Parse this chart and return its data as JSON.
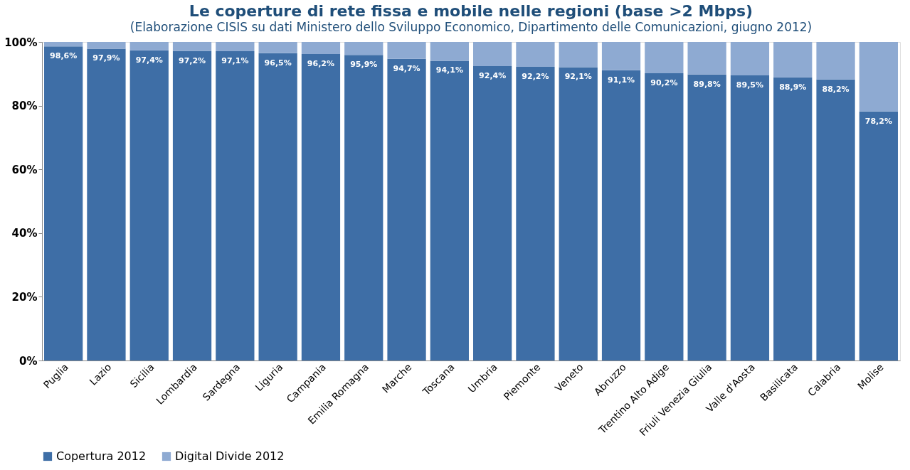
{
  "chart_data": {
    "type": "bar",
    "stacked": true,
    "title": "Le coperture di rete fissa e mobile nelle regioni (base >2 Mbps)",
    "subtitle": "(Elaborazione CISIS su dati Ministero dello Sviluppo Economico, Dipartimento delle Comunicazioni, giugno 2012)",
    "categories": [
      "Puglia",
      "Lazio",
      "Sicilia",
      "Lombardia",
      "Sardegna",
      "Liguria",
      "Campania",
      "Emilia Romagna",
      "Marche",
      "Toscana",
      "Umbria",
      "Piemonte",
      "Veneto",
      "Abruzzo",
      "Trentino Alto Adige",
      "Friuli Venezia Giulia",
      "Valle d'Aosta",
      "Basilicata",
      "Calabria",
      "Molise"
    ],
    "series": [
      {
        "name": "Copertura 2012",
        "color": "#3e6ea6",
        "values": [
          98.6,
          97.9,
          97.4,
          97.2,
          97.1,
          96.5,
          96.2,
          95.9,
          94.7,
          94.1,
          92.4,
          92.2,
          92.1,
          91.1,
          90.2,
          89.8,
          89.5,
          88.9,
          88.2,
          78.2
        ],
        "value_labels": [
          "98,6%",
          "97,9%",
          "97,4%",
          "97,2%",
          "97,1%",
          "96,5%",
          "96,2%",
          "95,9%",
          "94,7%",
          "94,1%",
          "92,4%",
          "92,2%",
          "92,1%",
          "91,1%",
          "90,2%",
          "89,8%",
          "89,5%",
          "88,9%",
          "88,2%",
          "78,2%"
        ]
      },
      {
        "name": "Digital Divide 2012",
        "color": "#8eaad2",
        "values": [
          1.4,
          2.1,
          2.6,
          2.8,
          2.9,
          3.5,
          3.8,
          4.1,
          5.3,
          5.9,
          7.6,
          7.8,
          7.9,
          8.9,
          9.8,
          10.2,
          10.5,
          11.1,
          11.8,
          21.8
        ]
      }
    ],
    "ylim": [
      0,
      100
    ],
    "yticks": [
      {
        "value": 0,
        "label": "0%"
      },
      {
        "value": 20,
        "label": "20%"
      },
      {
        "value": 40,
        "label": "40%"
      },
      {
        "value": 60,
        "label": "60%"
      },
      {
        "value": 80,
        "label": "80%"
      },
      {
        "value": 100,
        "label": "100%"
      }
    ],
    "grid": false,
    "legend": "bottom"
  }
}
